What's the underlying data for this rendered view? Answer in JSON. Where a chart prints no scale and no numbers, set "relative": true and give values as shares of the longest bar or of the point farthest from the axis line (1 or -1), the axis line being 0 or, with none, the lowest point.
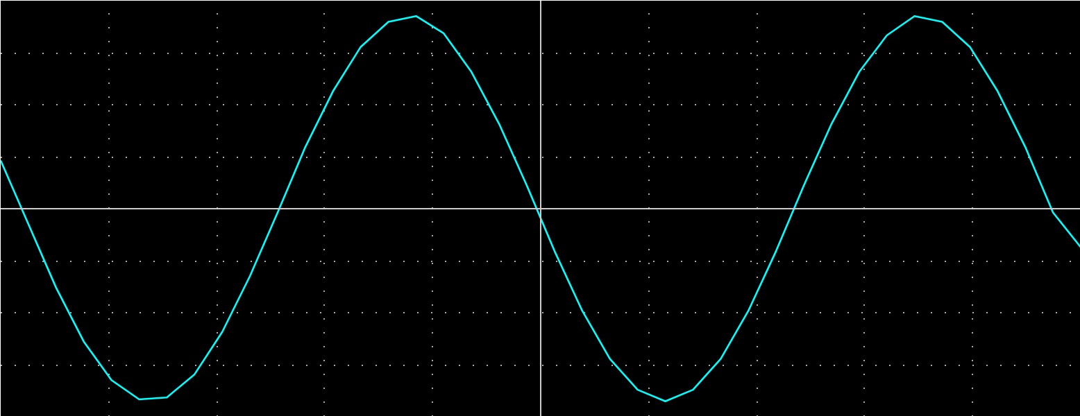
{
  "chart_data": {
    "type": "line",
    "relative": true,
    "grid": true,
    "line_style": "solid",
    "categories": [
      null,
      null,
      null,
      null,
      null,
      null,
      null,
      null,
      null,
      null,
      null,
      null,
      null,
      null,
      null,
      null,
      null,
      null,
      null,
      null,
      null,
      null,
      null,
      null,
      null,
      null,
      null,
      null,
      null,
      null,
      null,
      null,
      null,
      null,
      null,
      null,
      null,
      null,
      null,
      null
    ],
    "series": [
      {
        "color": "#00ffff",
        "values": [
          0.25,
          -0.08,
          -0.41,
          -0.69,
          -0.89,
          -0.99,
          -0.98,
          -0.86,
          -0.64,
          -0.35,
          -0.02,
          0.32,
          0.61,
          0.84,
          0.97,
          1.0,
          0.91,
          0.71,
          0.44,
          0.12,
          -0.22,
          -0.53,
          -0.78,
          -0.94,
          -1.0,
          -0.94,
          -0.78,
          -0.53,
          -0.22,
          0.12,
          0.44,
          0.71,
          0.9,
          1.0,
          0.97,
          0.84,
          0.61,
          0.32,
          -0.02,
          -0.2
        ]
      }
    ]
  }
}
